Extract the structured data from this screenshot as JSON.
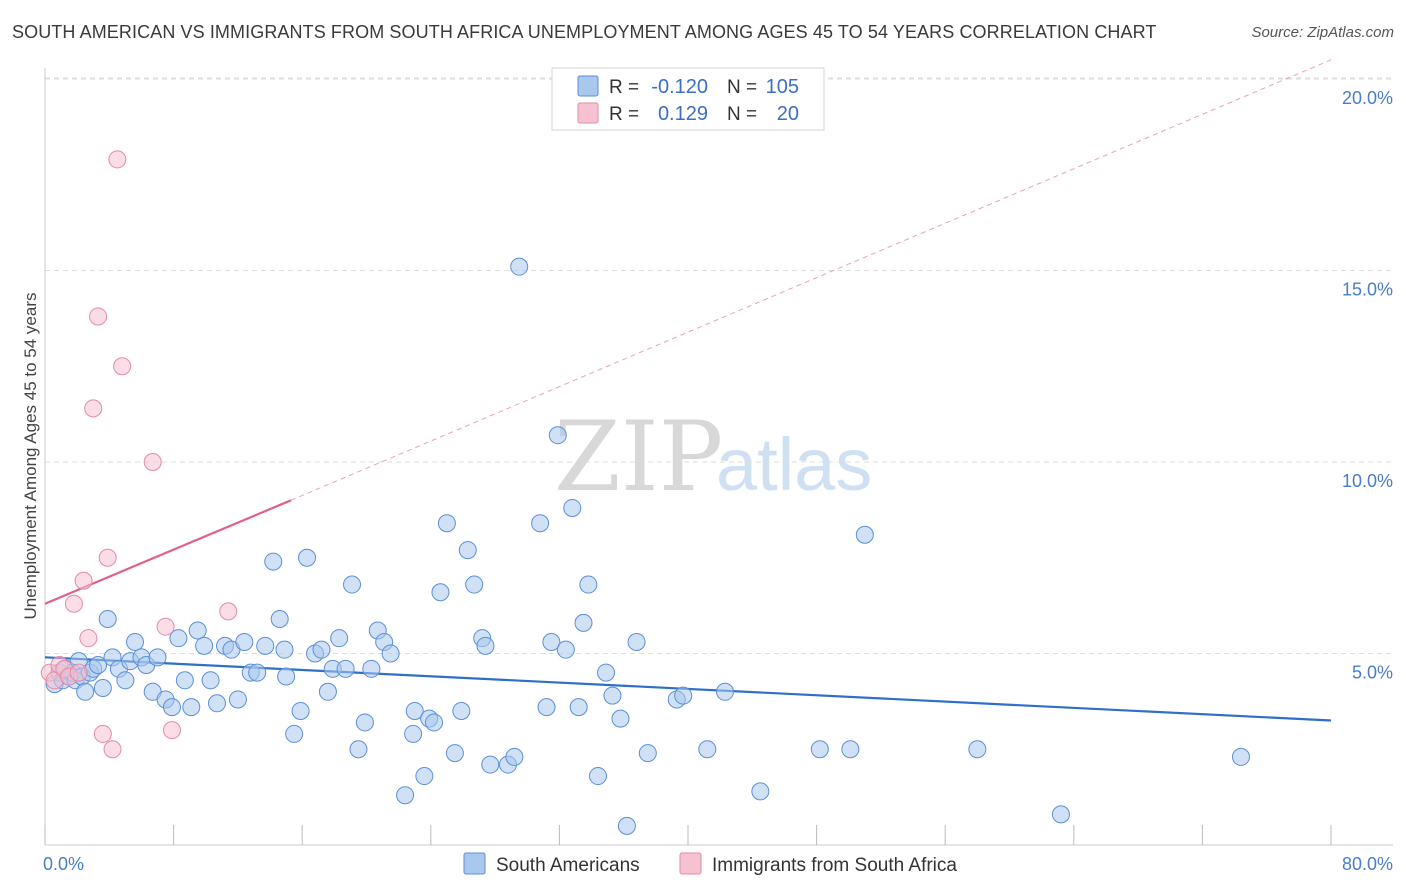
{
  "title": "SOUTH AMERICAN VS IMMIGRANTS FROM SOUTH AFRICA UNEMPLOYMENT AMONG AGES 45 TO 54 YEARS CORRELATION CHART",
  "source": "Source: ZipAtlas.com",
  "watermark": {
    "zip": "ZIP",
    "atlas": "atlas"
  },
  "colors": {
    "blue_fill": "#a9c8ee",
    "blue_stroke": "#5b8fd6",
    "blue_line": "#2f6fc9",
    "pink_fill": "#f6c1d1",
    "pink_stroke": "#e58aa6",
    "pink_line": "#e0608a",
    "grid": "#dddddd",
    "tick_text": "#4a7cc9"
  },
  "legend": {
    "r_label": "R =",
    "n_label": "N =",
    "rows": [
      {
        "r": "-0.120",
        "n": "105"
      },
      {
        "r": "0.129",
        "n": "20"
      }
    ]
  },
  "chart_data": {
    "type": "scatter",
    "title": "SOUTH AMERICAN VS IMMIGRANTS FROM SOUTH AFRICA UNEMPLOYMENT AMONG AGES 45 TO 54 YEARS CORRELATION CHART",
    "xlabel": "",
    "ylabel": "Unemployment Among Ages 45 to 54 years",
    "xlim": [
      0,
      80
    ],
    "ylim": [
      0,
      20
    ],
    "x_tick_labels": [
      "0.0%",
      "80.0%"
    ],
    "y_ticks": [
      5,
      10,
      15,
      20
    ],
    "y_tick_labels": [
      "5.0%",
      "10.0%",
      "15.0%",
      "20.0%"
    ],
    "grid": true,
    "legend_position": "bottom-center",
    "series": [
      {
        "name": "South Americans",
        "color": "#5b8fd6",
        "trend": {
          "x": [
            0,
            80
          ],
          "y": [
            4.9,
            3.25
          ]
        },
        "points": [
          [
            0.6,
            4.2
          ],
          [
            0.9,
            4.5
          ],
          [
            1.1,
            4.3
          ],
          [
            1.3,
            4.6
          ],
          [
            1.5,
            4.4
          ],
          [
            1.7,
            4.5
          ],
          [
            1.9,
            4.3
          ],
          [
            2.1,
            4.8
          ],
          [
            2.3,
            4.4
          ],
          [
            2.5,
            4.0
          ],
          [
            2.8,
            4.5
          ],
          [
            3.0,
            4.6
          ],
          [
            3.3,
            4.7
          ],
          [
            3.6,
            4.1
          ],
          [
            3.9,
            5.9
          ],
          [
            4.2,
            4.9
          ],
          [
            4.6,
            4.6
          ],
          [
            5.0,
            4.3
          ],
          [
            5.3,
            4.8
          ],
          [
            5.6,
            5.3
          ],
          [
            6.0,
            4.9
          ],
          [
            6.3,
            4.7
          ],
          [
            6.7,
            4.0
          ],
          [
            7.0,
            4.9
          ],
          [
            7.5,
            3.8
          ],
          [
            7.9,
            3.6
          ],
          [
            8.3,
            5.4
          ],
          [
            8.7,
            4.3
          ],
          [
            9.1,
            3.6
          ],
          [
            9.5,
            5.6
          ],
          [
            9.9,
            5.2
          ],
          [
            10.3,
            4.3
          ],
          [
            10.7,
            3.7
          ],
          [
            11.2,
            5.2
          ],
          [
            11.6,
            5.1
          ],
          [
            12.0,
            3.8
          ],
          [
            12.4,
            5.3
          ],
          [
            12.8,
            4.5
          ],
          [
            13.2,
            4.5
          ],
          [
            13.7,
            5.2
          ],
          [
            14.2,
            7.4
          ],
          [
            14.6,
            5.9
          ],
          [
            15.0,
            4.4
          ],
          [
            15.5,
            2.9
          ],
          [
            15.9,
            3.5
          ],
          [
            16.3,
            7.5
          ],
          [
            16.8,
            5.0
          ],
          [
            17.2,
            5.1
          ],
          [
            17.6,
            4.0
          ],
          [
            17.9,
            4.6
          ],
          [
            18.3,
            5.4
          ],
          [
            18.7,
            4.6
          ],
          [
            19.1,
            6.8
          ],
          [
            19.5,
            2.5
          ],
          [
            19.9,
            3.2
          ],
          [
            20.3,
            4.6
          ],
          [
            20.7,
            5.6
          ],
          [
            21.1,
            5.3
          ],
          [
            21.5,
            5.0
          ],
          [
            22.4,
            1.3
          ],
          [
            22.9,
            2.9
          ],
          [
            23.0,
            3.5
          ],
          [
            23.6,
            1.8
          ],
          [
            23.9,
            3.3
          ],
          [
            24.2,
            3.2
          ],
          [
            24.6,
            6.6
          ],
          [
            25.0,
            8.4
          ],
          [
            25.5,
            2.4
          ],
          [
            25.9,
            3.5
          ],
          [
            26.3,
            7.7
          ],
          [
            26.7,
            6.8
          ],
          [
            27.2,
            5.4
          ],
          [
            27.4,
            5.2
          ],
          [
            27.7,
            2.1
          ],
          [
            28.8,
            2.1
          ],
          [
            29.2,
            2.3
          ],
          [
            29.5,
            15.1
          ],
          [
            30.8,
            8.4
          ],
          [
            31.2,
            3.6
          ],
          [
            31.5,
            5.3
          ],
          [
            31.9,
            10.7
          ],
          [
            32.4,
            5.1
          ],
          [
            32.8,
            8.8
          ],
          [
            33.2,
            3.6
          ],
          [
            33.5,
            5.8
          ],
          [
            33.8,
            6.8
          ],
          [
            34.4,
            1.8
          ],
          [
            34.9,
            4.5
          ],
          [
            35.3,
            3.9
          ],
          [
            35.8,
            3.3
          ],
          [
            36.2,
            0.5
          ],
          [
            36.8,
            5.3
          ],
          [
            37.5,
            2.4
          ],
          [
            39.3,
            3.8
          ],
          [
            39.7,
            3.9
          ],
          [
            41.2,
            2.5
          ],
          [
            42.3,
            4.0
          ],
          [
            44.5,
            1.4
          ],
          [
            48.2,
            2.5
          ],
          [
            50.1,
            2.5
          ],
          [
            51.0,
            8.1
          ],
          [
            63.2,
            0.8
          ],
          [
            74.4,
            2.3
          ],
          [
            58.0,
            2.5
          ],
          [
            14.9,
            5.1
          ]
        ]
      },
      {
        "name": "Immigrants from South Africa",
        "color": "#e58aa6",
        "trend": {
          "x": [
            0,
            15.3
          ],
          "y": [
            6.3,
            9.0
          ]
        },
        "trend_extension": {
          "x": [
            15.3,
            80
          ],
          "y": [
            9.0,
            20.5
          ]
        },
        "points": [
          [
            0.3,
            4.5
          ],
          [
            0.6,
            4.3
          ],
          [
            0.9,
            4.7
          ],
          [
            1.2,
            4.6
          ],
          [
            1.5,
            4.4
          ],
          [
            1.8,
            6.3
          ],
          [
            2.1,
            4.5
          ],
          [
            2.4,
            6.9
          ],
          [
            2.7,
            5.4
          ],
          [
            3.0,
            11.4
          ],
          [
            3.3,
            13.8
          ],
          [
            3.6,
            2.9
          ],
          [
            3.9,
            7.5
          ],
          [
            4.2,
            2.5
          ],
          [
            4.5,
            17.9
          ],
          [
            4.8,
            12.5
          ],
          [
            6.7,
            10.0
          ],
          [
            7.5,
            5.7
          ],
          [
            7.9,
            3.0
          ],
          [
            11.4,
            6.1
          ]
        ]
      }
    ]
  },
  "bottom_legend": {
    "items": [
      "South Americans",
      "Immigrants from South Africa"
    ]
  }
}
